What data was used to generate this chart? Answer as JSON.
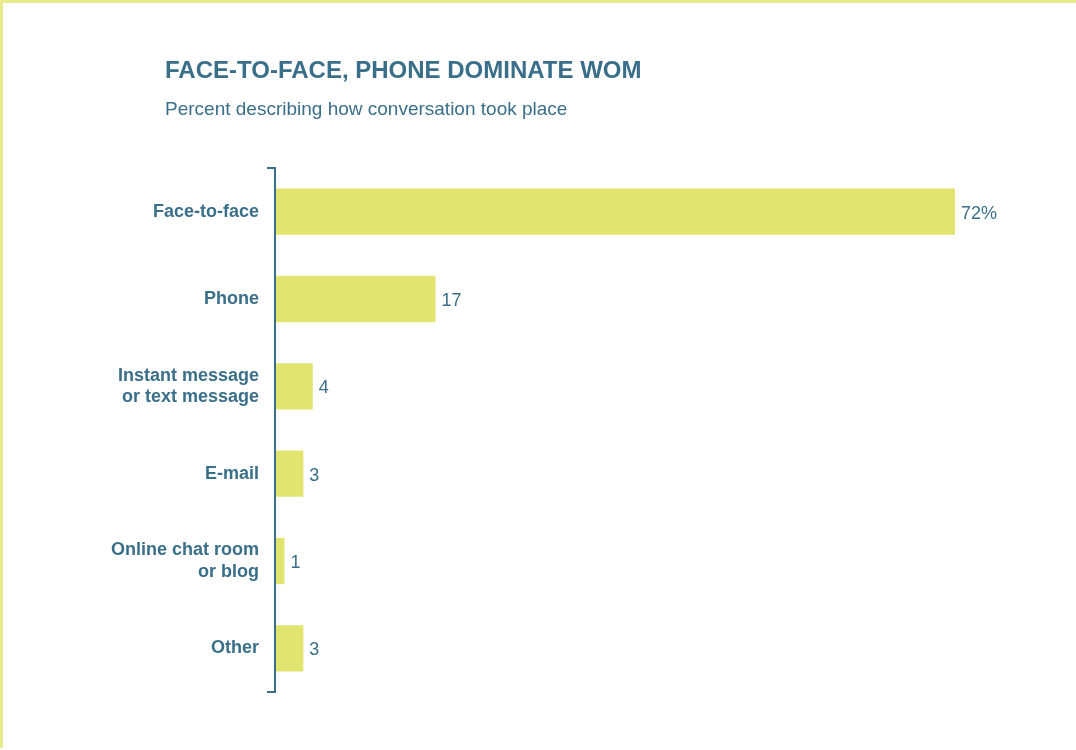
{
  "chart_data": {
    "type": "bar",
    "orientation": "horizontal",
    "title": "FACE-TO-FACE, PHONE DOMINATE WOM",
    "subtitle": "Percent describing how conversation took place",
    "categories": [
      "Face-to-face",
      "Phone",
      "Instant message\nor text message",
      "E-mail",
      "Online chat room\nor blog",
      "Other"
    ],
    "values": [
      72,
      17,
      4,
      3,
      1,
      3
    ],
    "value_labels": [
      "72%",
      "17",
      "4",
      "3",
      "1",
      "3"
    ],
    "color": "#e1e56f",
    "grid": false,
    "legend": false
  }
}
